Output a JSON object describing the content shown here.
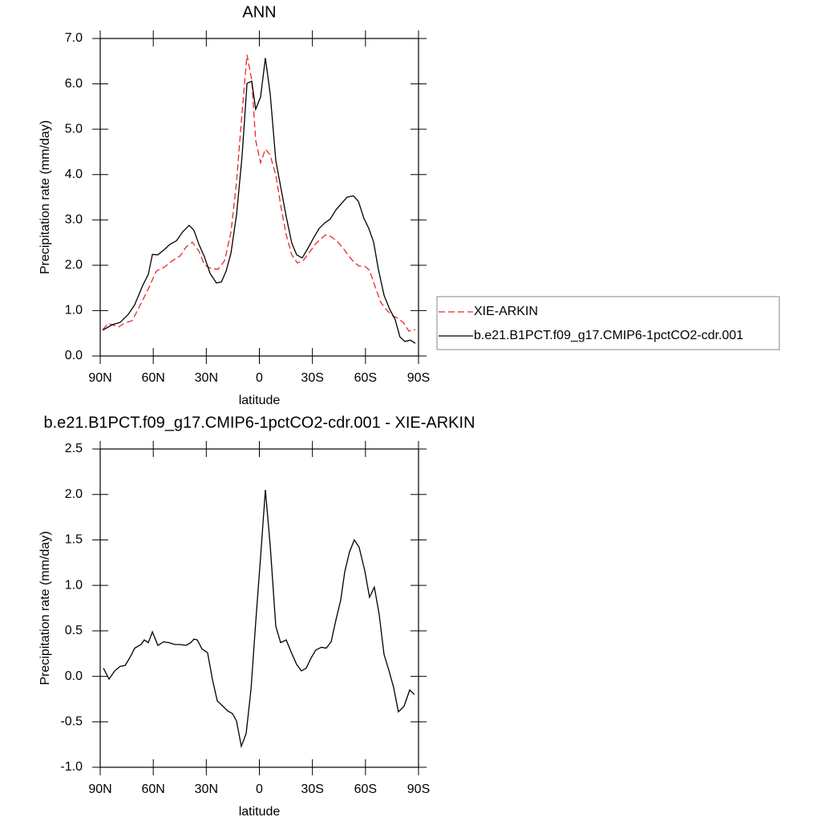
{
  "chart_data": [
    {
      "type": "line",
      "title": "ANN",
      "xlabel": "latitude",
      "ylabel": "Precipitation rate (mm/day)",
      "xlim": [
        90,
        -90
      ],
      "xticks": [
        {
          "value": 90,
          "label": "90N"
        },
        {
          "value": 60,
          "label": "60N"
        },
        {
          "value": 30,
          "label": "30N"
        },
        0,
        {
          "value": -30,
          "label": "30S"
        },
        {
          "value": -60,
          "label": "60S"
        },
        {
          "value": -90,
          "label": "90S"
        }
      ],
      "ylim": [
        0,
        7
      ],
      "yticks": [
        {
          "value": 0,
          "label": "0.0"
        },
        {
          "value": 1,
          "label": "1.0"
        },
        {
          "value": 2,
          "label": "2.0"
        },
        {
          "value": 3,
          "label": "3.0"
        },
        {
          "value": 4,
          "label": "4.0"
        },
        {
          "value": 5,
          "label": "5.0"
        },
        {
          "value": 6,
          "label": "6.0"
        },
        {
          "value": 7,
          "label": "7.0"
        }
      ],
      "legend": "outside-right",
      "series": [
        {
          "name": "XIE-ARKIN",
          "color": "#e8292b",
          "style": "dashed",
          "x": [
            88.6,
            85.5,
            79.6,
            76.4,
            71.9,
            67.3,
            62.8,
            58.3,
            53.7,
            49.2,
            44.7,
            41.5,
            37.9,
            34.2,
            31.1,
            27.4,
            23.4,
            19.7,
            16.1,
            12.9,
            9.8,
            7.0,
            4.3,
            2.1,
            -0.7,
            -3.4,
            -6.1,
            -9.3,
            -12.4,
            -15.2,
            -18.3,
            -21.5,
            -24.7,
            -28.3,
            -31.5,
            -34.7,
            -37.4,
            -40.6,
            -43.7,
            -46.9,
            -50.1,
            -53.2,
            -56.4,
            -59.6,
            -62.3,
            -65.5,
            -68.7,
            -71.8,
            -75.0,
            -78.2,
            -81.4,
            -84.5,
            -88.2
          ],
          "values": [
            0.58,
            0.72,
            0.64,
            0.72,
            0.78,
            1.13,
            1.48,
            1.87,
            1.96,
            2.1,
            2.21,
            2.4,
            2.51,
            2.31,
            2.01,
            1.93,
            1.91,
            2.1,
            2.72,
            3.83,
            5.37,
            6.64,
            6.08,
            4.75,
            4.26,
            4.56,
            4.43,
            3.99,
            3.25,
            2.67,
            2.23,
            2.05,
            2.1,
            2.28,
            2.46,
            2.58,
            2.67,
            2.63,
            2.54,
            2.4,
            2.23,
            2.08,
            1.98,
            1.98,
            1.89,
            1.52,
            1.18,
            1.02,
            0.9,
            0.83,
            0.74,
            0.55,
            0.58
          ]
        },
        {
          "name": "b.e21.B1PCT.f09_g17.CMIP6-1pctCO2-cdr.001",
          "color": "#000000",
          "style": "solid",
          "x": [
            88.6,
            83.2,
            78.7,
            74.1,
            70.5,
            66.0,
            62.8,
            60.5,
            57.4,
            53.7,
            50.6,
            46.9,
            43.3,
            39.7,
            37.0,
            34.2,
            31.1,
            27.9,
            24.3,
            21.5,
            18.8,
            16.1,
            12.9,
            9.8,
            7.0,
            4.3,
            2.1,
            -0.7,
            -3.4,
            -6.1,
            -9.3,
            -12.4,
            -15.2,
            -18.3,
            -21.1,
            -24.2,
            -27.4,
            -30.6,
            -33.8,
            -36.9,
            -40.1,
            -43.3,
            -46.4,
            -49.6,
            -53.2,
            -56.0,
            -59.1,
            -61.9,
            -64.6,
            -67.3,
            -70.5,
            -73.6,
            -76.8,
            -79.5,
            -82.3,
            -85.4,
            -88.2
          ],
          "values": [
            0.57,
            0.69,
            0.74,
            0.92,
            1.13,
            1.55,
            1.8,
            2.24,
            2.23,
            2.35,
            2.46,
            2.54,
            2.74,
            2.88,
            2.77,
            2.46,
            2.19,
            1.82,
            1.61,
            1.63,
            1.87,
            2.26,
            3.11,
            4.4,
            6.01,
            6.06,
            5.44,
            5.71,
            6.57,
            5.78,
            4.31,
            3.66,
            3.07,
            2.49,
            2.23,
            2.16,
            2.37,
            2.6,
            2.81,
            2.93,
            3.02,
            3.22,
            3.36,
            3.5,
            3.53,
            3.41,
            3.04,
            2.81,
            2.51,
            1.91,
            1.34,
            1.04,
            0.8,
            0.42,
            0.32,
            0.35,
            0.28
          ]
        }
      ]
    },
    {
      "type": "line",
      "title": "b.e21.B1PCT.f09_g17.CMIP6-1pctCO2-cdr.001 - XIE-ARKIN",
      "xlabel": "latitude",
      "ylabel": "Precipitation rate (mm/day)",
      "xlim": [
        90,
        -90
      ],
      "xticks": [
        {
          "value": 90,
          "label": "90N"
        },
        {
          "value": 60,
          "label": "60N"
        },
        {
          "value": 30,
          "label": "30N"
        },
        0,
        {
          "value": -30,
          "label": "30S"
        },
        {
          "value": -60,
          "label": "60S"
        },
        {
          "value": -90,
          "label": "90S"
        }
      ],
      "ylim": [
        -1,
        2.5
      ],
      "yticks": [
        {
          "value": -1,
          "label": "-1.0"
        },
        -0.5,
        {
          "value": 0,
          "label": "0.0"
        },
        0.5,
        {
          "value": 1,
          "label": "1.0"
        },
        1.5,
        {
          "value": 2,
          "label": "2.0"
        },
        2.5
      ],
      "series": [
        {
          "color": "#000000",
          "style": "solid",
          "x": [
            88.2,
            85.0,
            81.8,
            78.7,
            75.9,
            72.8,
            70.5,
            66.9,
            65.1,
            62.8,
            60.5,
            57.4,
            54.2,
            51.0,
            47.8,
            44.7,
            41.5,
            38.8,
            37.0,
            35.1,
            32.4,
            29.3,
            26.5,
            23.8,
            21.1,
            17.9,
            15.2,
            12.9,
            10.2,
            7.5,
            4.7,
            2.1,
            -0.7,
            -3.4,
            -6.1,
            -9.3,
            -12.0,
            -15.2,
            -17.9,
            -21.1,
            -23.8,
            -26.5,
            -29.2,
            -31.9,
            -35.1,
            -37.8,
            -40.6,
            -43.3,
            -46.0,
            -48.3,
            -51.0,
            -53.7,
            -56.4,
            -59.6,
            -62.3,
            -65.0,
            -67.7,
            -70.5,
            -73.2,
            -75.9,
            -78.6,
            -81.8,
            -85.0,
            -87.7
          ],
          "values": [
            0.09,
            -0.03,
            0.06,
            0.11,
            0.12,
            0.22,
            0.31,
            0.35,
            0.4,
            0.37,
            0.49,
            0.34,
            0.38,
            0.37,
            0.35,
            0.35,
            0.34,
            0.37,
            0.41,
            0.4,
            0.3,
            0.26,
            -0.04,
            -0.27,
            -0.32,
            -0.38,
            -0.41,
            -0.49,
            -0.77,
            -0.63,
            -0.14,
            0.59,
            1.31,
            2.05,
            1.44,
            0.55,
            0.37,
            0.4,
            0.27,
            0.13,
            0.06,
            0.09,
            0.2,
            0.29,
            0.32,
            0.31,
            0.38,
            0.62,
            0.84,
            1.15,
            1.37,
            1.5,
            1.42,
            1.16,
            0.87,
            0.98,
            0.69,
            0.24,
            0.07,
            -0.12,
            -0.39,
            -0.33,
            -0.15,
            -0.2
          ]
        }
      ]
    }
  ]
}
